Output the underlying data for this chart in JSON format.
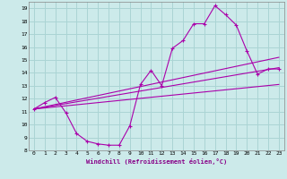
{
  "xlabel": "Windchill (Refroidissement éolien,°C)",
  "background_color": "#cceaea",
  "grid_color": "#aad4d4",
  "line_color": "#aa00aa",
  "xlim": [
    -0.5,
    23.5
  ],
  "ylim": [
    8,
    19.5
  ],
  "xticks": [
    0,
    1,
    2,
    3,
    4,
    5,
    6,
    7,
    8,
    9,
    10,
    11,
    12,
    13,
    14,
    15,
    16,
    17,
    18,
    19,
    20,
    21,
    22,
    23
  ],
  "yticks": [
    8,
    9,
    10,
    11,
    12,
    13,
    14,
    15,
    16,
    17,
    18,
    19
  ],
  "curve1_x": [
    0,
    1,
    2,
    3,
    4,
    5,
    6,
    7,
    8,
    9,
    10,
    11,
    12,
    13,
    14,
    15,
    16,
    17,
    18,
    19,
    20,
    21,
    22,
    23
  ],
  "curve1_y": [
    11.2,
    11.7,
    12.1,
    10.9,
    9.3,
    8.7,
    8.5,
    8.4,
    8.4,
    9.9,
    13.1,
    14.2,
    13.0,
    15.9,
    16.5,
    17.8,
    17.8,
    19.2,
    18.5,
    17.7,
    15.7,
    13.9,
    14.3,
    14.3
  ],
  "line1_x": [
    0,
    23
  ],
  "line1_y": [
    11.2,
    15.2
  ],
  "line2_x": [
    0,
    23
  ],
  "line2_y": [
    11.2,
    14.4
  ],
  "line3_x": [
    0,
    23
  ],
  "line3_y": [
    11.2,
    13.1
  ]
}
